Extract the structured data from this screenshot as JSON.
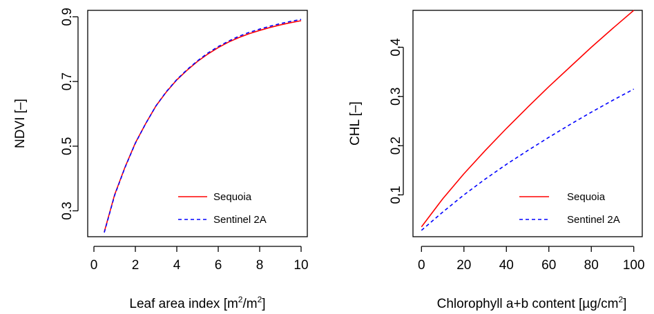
{
  "chart_data": [
    {
      "type": "line",
      "xlabel": "Leaf area index [m²/m²]",
      "xlabel_parts": {
        "pre": "Leaf area index [m",
        "sup1": "2",
        "mid": "/m",
        "sup2": "2",
        "post": "]"
      },
      "ylabel": "NDVI [–]",
      "xlim": [
        -0.3,
        10.3
      ],
      "ylim": [
        0.22,
        0.92
      ],
      "xticks": [
        0,
        2,
        4,
        6,
        8,
        10
      ],
      "yticks": [
        0.3,
        0.5,
        0.7,
        0.9
      ],
      "xtick_labels": [
        "0",
        "2",
        "4",
        "6",
        "8",
        "10"
      ],
      "ytick_labels": [
        "0.3",
        "0.5",
        "0.7",
        "0.9"
      ],
      "legend_position": "bottom-right",
      "series": [
        {
          "name": "Sequoia",
          "color": "#ff0000",
          "dash": "solid",
          "x": [
            0.5,
            1,
            1.5,
            2,
            2.5,
            3,
            3.5,
            4,
            4.5,
            5,
            5.5,
            6,
            6.5,
            7,
            7.5,
            8,
            8.5,
            9,
            9.5,
            10
          ],
          "y": [
            0.235,
            0.35,
            0.435,
            0.51,
            0.57,
            0.625,
            0.668,
            0.705,
            0.735,
            0.762,
            0.785,
            0.805,
            0.822,
            0.836,
            0.848,
            0.858,
            0.867,
            0.875,
            0.882,
            0.888
          ]
        },
        {
          "name": "Sentinel 2A",
          "color": "#0000ff",
          "dash": "dashed",
          "x": [
            0.5,
            1,
            1.5,
            2,
            2.5,
            3,
            3.5,
            4,
            4.5,
            5,
            5.5,
            6,
            6.5,
            7,
            7.5,
            8,
            8.5,
            9,
            9.5,
            10
          ],
          "y": [
            0.233,
            0.348,
            0.434,
            0.509,
            0.57,
            0.625,
            0.669,
            0.706,
            0.737,
            0.764,
            0.788,
            0.808,
            0.825,
            0.84,
            0.852,
            0.862,
            0.871,
            0.879,
            0.886,
            0.892
          ]
        }
      ]
    },
    {
      "type": "line",
      "xlabel": "Chlorophyll a+b content [µg/cm²]",
      "xlabel_parts": {
        "pre": "Chlorophyll a+b content [µg/cm",
        "sup1": "2",
        "mid": "]",
        "sup2": "",
        "post": ""
      },
      "ylabel": "CHL [–]",
      "xlim": [
        -4,
        104
      ],
      "ylim": [
        0.015,
        0.475
      ],
      "xticks": [
        0,
        20,
        40,
        60,
        80,
        100
      ],
      "yticks": [
        0.1,
        0.2,
        0.3,
        0.4
      ],
      "xtick_labels": [
        "0",
        "20",
        "40",
        "60",
        "80",
        "100"
      ],
      "ytick_labels": [
        "0.1",
        "0.2",
        "0.3",
        "0.4"
      ],
      "legend_position": "bottom-right",
      "series": [
        {
          "name": "Sequoia",
          "color": "#ff0000",
          "dash": "solid",
          "x": [
            0,
            10,
            20,
            30,
            40,
            50,
            60,
            70,
            80,
            90,
            100
          ],
          "y": [
            0.035,
            0.092,
            0.143,
            0.19,
            0.235,
            0.278,
            0.32,
            0.36,
            0.4,
            0.438,
            0.475
          ]
        },
        {
          "name": "Sentinel 2A",
          "color": "#0000ff",
          "dash": "dashed",
          "x": [
            0,
            10,
            20,
            30,
            40,
            50,
            60,
            70,
            80,
            90,
            100
          ],
          "y": [
            0.028,
            0.065,
            0.1,
            0.132,
            0.162,
            0.19,
            0.217,
            0.243,
            0.268,
            0.292,
            0.315
          ]
        }
      ]
    }
  ]
}
